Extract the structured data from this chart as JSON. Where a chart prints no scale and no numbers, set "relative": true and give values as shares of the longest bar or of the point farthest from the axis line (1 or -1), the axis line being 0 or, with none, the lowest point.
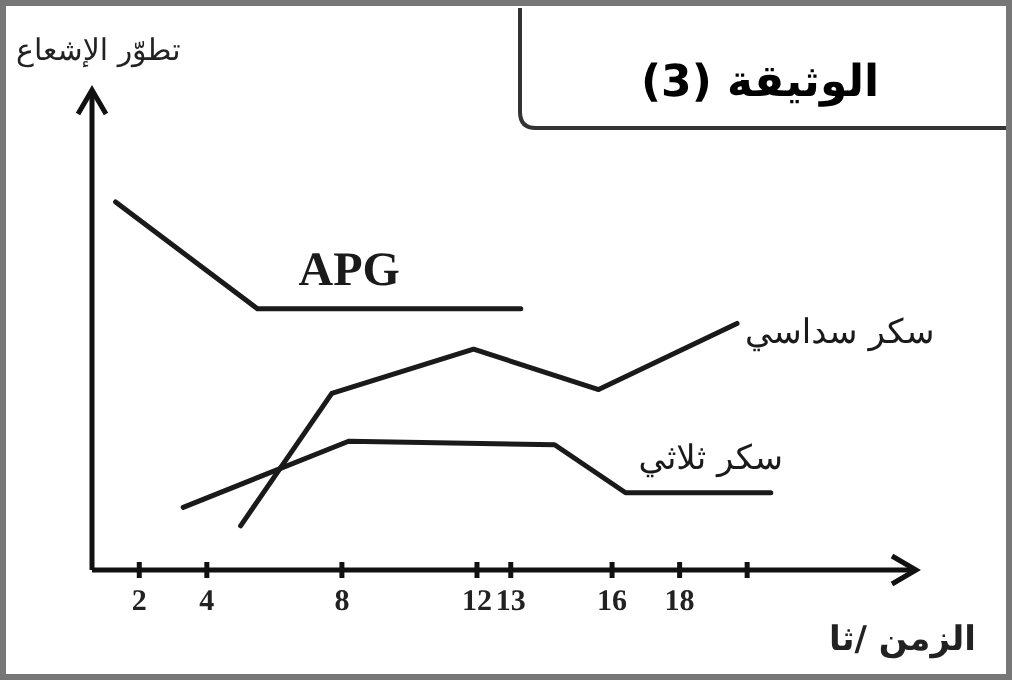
{
  "chart_data": {
    "type": "line",
    "title": "الوثيقة (3)",
    "ylabel": "تطوّر الإشعاع",
    "xlabel": "الزمن /ثا",
    "relative": true,
    "xlim": [
      0.6,
      25
    ],
    "xticks": [
      2,
      4,
      8,
      12,
      13,
      16,
      18,
      {
        "value": 20,
        "label": null
      }
    ],
    "marker": "none",
    "line_style": "solid",
    "series": [
      {
        "name": "APG",
        "color": "#1a1a1a",
        "x": [
          1.3,
          5.5,
          13.3
        ],
        "values": [
          1,
          0.71,
          0.71
        ]
      },
      {
        "name": "سكر سداسي",
        "color": "#1a1a1a",
        "x": [
          5.0,
          7.7,
          11.9,
          15.6,
          19.7
        ],
        "values": [
          0.12,
          0.48,
          0.6,
          0.49,
          0.67
        ]
      },
      {
        "name": "سكر ثلاثي",
        "color": "#1a1a1a",
        "x": [
          3.3,
          8.2,
          14.3,
          16.4,
          20.7
        ],
        "values": [
          0.17,
          0.35,
          0.34,
          0.21,
          0.21
        ]
      }
    ]
  }
}
